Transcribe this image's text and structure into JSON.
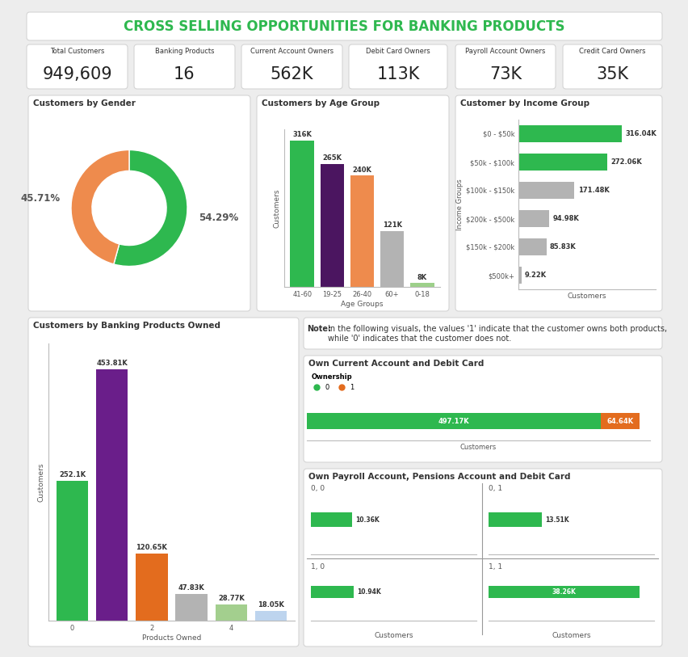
{
  "title": "CROSS SELLING OPPORTUNITIES FOR BANKING PRODUCTS",
  "kpis": [
    {
      "label": "Total Customers",
      "value": "949,609"
    },
    {
      "label": "Banking Products",
      "value": "16"
    },
    {
      "label": "Current Account Owners",
      "value": "562K"
    },
    {
      "label": "Debit Card Owners",
      "value": "113K"
    },
    {
      "label": "Payroll Account Owners",
      "value": "73K"
    },
    {
      "label": "Credit Card Owners",
      "value": "35K"
    }
  ],
  "note": {
    "label": "Note:",
    "text": "In the following visuals, the values '1' indicate that the customer owns both products, while '0' indicates that the customer does not."
  },
  "chart_data": [
    {
      "type": "donut",
      "title": "Customers by Gender",
      "values": [
        54.29,
        45.71
      ],
      "value_labels": [
        "54.29%",
        "45.71%"
      ],
      "colors": [
        "#2EB84F",
        "#EE8B4D"
      ],
      "data_labels": true
    },
    {
      "type": "bar",
      "title": "Customers by Age Group",
      "x_label": "Age Groups",
      "y_label": "Customers",
      "categories": [
        "41-60",
        "19-25",
        "26-40",
        "60+",
        "0-18"
      ],
      "values": [
        316000,
        265000,
        240000,
        121000,
        8000
      ],
      "value_labels": [
        "316K",
        "265K",
        "240K",
        "121K",
        "8K"
      ],
      "colors": [
        "#2EB84F",
        "#4B1560",
        "#EE8B4D",
        "#B3B3B3",
        "#9DD08A"
      ],
      "ylim": [
        0,
        340000
      ],
      "data_labels": true,
      "tick_labels": "x"
    },
    {
      "type": "bar",
      "orientation": "horizontal",
      "title": "Customer by Income Group",
      "x_label": "Customers",
      "y_label": "Income Groups",
      "categories": [
        "$0 - $50k",
        "$50k - $100k",
        "$100k - $150k",
        "$200k - $500k",
        "$150k - $200k",
        "$500k+"
      ],
      "values": [
        316040,
        272060,
        171480,
        94980,
        85830,
        9220
      ],
      "value_labels": [
        "316.04K",
        "272.06K",
        "171.48K",
        "94.98K",
        "85.83K",
        "9.22K"
      ],
      "colors": [
        "#2EB84F",
        "#2EB84F",
        "#B3B3B3",
        "#B3B3B3",
        "#B3B3B3",
        "#B3B3B3"
      ],
      "xlim": [
        0,
        420000
      ],
      "data_labels": true,
      "tick_labels": "y"
    },
    {
      "type": "bar",
      "title": "Customers by Banking Products Owned",
      "x_label": "Products Owned",
      "y_label": "Customers",
      "categories": [
        "0",
        null,
        "2",
        null,
        "4",
        null
      ],
      "values": [
        252100,
        453810,
        120650,
        47830,
        28770,
        18050
      ],
      "value_labels": [
        "252.1K",
        "453.81K",
        "120.65K",
        "47.83K",
        "28.77K",
        "18.05K"
      ],
      "colors": [
        "#2EB84F",
        "#6A1E8A",
        "#E36C1E",
        "#B3B3B3",
        "#A3CF8E",
        "#BDD4EE"
      ],
      "ylim": [
        0,
        500000
      ],
      "data_labels": true,
      "tick_labels": "x"
    },
    {
      "type": "bar",
      "orientation": "horizontal",
      "stacked": true,
      "title": "Own Current Account and Debit Card",
      "x_label": "Customers",
      "legend_title": "Ownership",
      "legend": "upper left",
      "categories": [
        null
      ],
      "series": [
        {
          "name": "0",
          "color": "#2EB84F",
          "values": [
            497170
          ],
          "value_labels": [
            "497.17K"
          ]
        },
        {
          "name": "1",
          "color": "#E36C1E",
          "values": [
            64640
          ],
          "value_labels": [
            "64.64K"
          ]
        }
      ],
      "xlim": [
        0,
        580000
      ],
      "data_labels": true,
      "tick_labels": false
    },
    {
      "type": "bar",
      "orientation": "horizontal",
      "title": "Own Payroll Account, Pensions Account and Debit Card",
      "x_label": "Customers",
      "color": "#2EB84F",
      "panels": [
        {
          "title": "0, 0",
          "values": [
            10360
          ],
          "value_labels": [
            "10.36K"
          ]
        },
        {
          "title": "0, 1",
          "values": [
            13510
          ],
          "value_labels": [
            "13.51K"
          ]
        },
        {
          "title": "1, 0",
          "values": [
            10940
          ],
          "value_labels": [
            "10.94K"
          ]
        },
        {
          "title": "1, 1",
          "values": [
            38260
          ],
          "value_labels": [
            "38.26K"
          ]
        }
      ],
      "xlim": [
        0,
        42000
      ],
      "data_labels": true,
      "tick_labels": false
    }
  ]
}
